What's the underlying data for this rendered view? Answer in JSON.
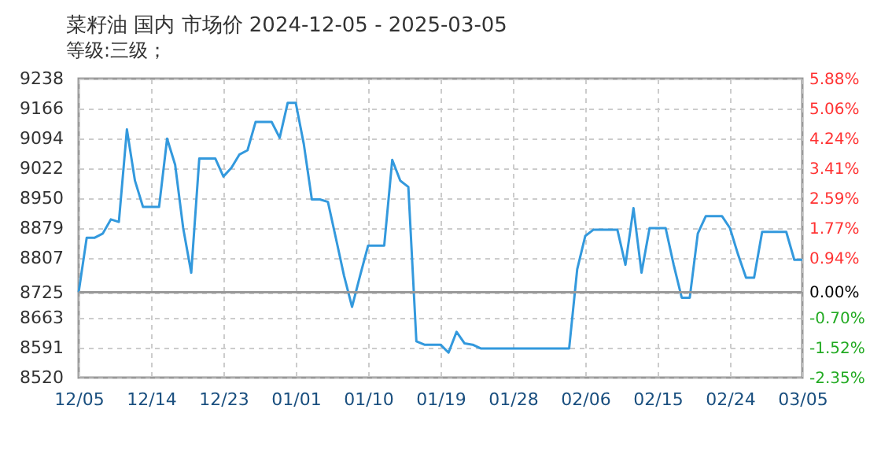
{
  "chart_data": {
    "type": "line",
    "title": "菜籽油 国内 市场价 2024-12-05 - 2025-03-05",
    "subtitle": "等级:三级；",
    "x": [
      "2024-12-05",
      "2024-12-06",
      "2024-12-07",
      "2024-12-08",
      "2024-12-09",
      "2024-12-10",
      "2024-12-11",
      "2024-12-12",
      "2024-12-13",
      "2024-12-14",
      "2024-12-15",
      "2024-12-16",
      "2024-12-17",
      "2024-12-18",
      "2024-12-19",
      "2024-12-20",
      "2024-12-21",
      "2024-12-22",
      "2024-12-23",
      "2024-12-24",
      "2024-12-25",
      "2024-12-26",
      "2024-12-27",
      "2024-12-28",
      "2024-12-29",
      "2024-12-30",
      "2024-12-31",
      "2025-01-01",
      "2025-01-02",
      "2025-01-03",
      "2025-01-04",
      "2025-01-05",
      "2025-01-06",
      "2025-01-07",
      "2025-01-08",
      "2025-01-09",
      "2025-01-10",
      "2025-01-11",
      "2025-01-12",
      "2025-01-13",
      "2025-01-14",
      "2025-01-15",
      "2025-01-16",
      "2025-01-17",
      "2025-01-18",
      "2025-01-19",
      "2025-01-20",
      "2025-01-21",
      "2025-01-22",
      "2025-01-23",
      "2025-01-24",
      "2025-01-25",
      "2025-01-26",
      "2025-01-27",
      "2025-01-28",
      "2025-01-29",
      "2025-01-30",
      "2025-01-31",
      "2025-02-01",
      "2025-02-02",
      "2025-02-03",
      "2025-02-04",
      "2025-02-05",
      "2025-02-06",
      "2025-02-07",
      "2025-02-08",
      "2025-02-09",
      "2025-02-10",
      "2025-02-11",
      "2025-02-12",
      "2025-02-13",
      "2025-02-14",
      "2025-02-15",
      "2025-02-16",
      "2025-02-17",
      "2025-02-18",
      "2025-02-19",
      "2025-02-20",
      "2025-02-21",
      "2025-02-22",
      "2025-02-23",
      "2025-02-24",
      "2025-02-25",
      "2025-02-26",
      "2025-02-27",
      "2025-02-28",
      "2025-03-01",
      "2025-03-02",
      "2025-03-03",
      "2025-03-04",
      "2025-03-05"
    ],
    "series": [
      {
        "color": "#3399dd",
        "values": [
          8725,
          8856,
          8856,
          8866,
          8900,
          8894,
          9116,
          8993,
          8930,
          8930,
          8930,
          9094,
          9031,
          8879,
          8772,
          9046,
          9046,
          9046,
          9003,
          9024,
          9056,
          9066,
          9134,
          9134,
          9134,
          9096,
          9180,
          9180,
          9081,
          8948,
          8948,
          8942,
          8854,
          8765,
          8690,
          8765,
          8837,
          8837,
          8837,
          9043,
          8993,
          8978,
          8607,
          8599,
          8599,
          8599,
          8580,
          8630,
          8602,
          8599,
          8590,
          8590,
          8590,
          8590,
          8590,
          8590,
          8590,
          8590,
          8590,
          8590,
          8590,
          8590,
          8780,
          8860,
          8875,
          8875,
          8875,
          8875,
          8791,
          8927,
          8772,
          8879,
          8879,
          8879,
          8791,
          8712,
          8712,
          8866,
          8908,
          8908,
          8908,
          8879,
          8816,
          8760,
          8760,
          8870,
          8870,
          8870,
          8870,
          8803,
          8803
        ]
      }
    ],
    "xlim": [
      "2024-12-05",
      "2025-03-05"
    ],
    "xticks": [
      {
        "value": "2024-12-05",
        "label": "12/05"
      },
      {
        "value": "2024-12-14",
        "label": "12/14"
      },
      {
        "value": "2024-12-23",
        "label": "12/23"
      },
      {
        "value": "2025-01-01",
        "label": "01/01"
      },
      {
        "value": "2025-01-10",
        "label": "01/10"
      },
      {
        "value": "2025-01-19",
        "label": "01/19"
      },
      {
        "value": "2025-01-28",
        "label": "01/28"
      },
      {
        "value": "2025-02-06",
        "label": "02/06"
      },
      {
        "value": "2025-02-15",
        "label": "02/15"
      },
      {
        "value": "2025-02-24",
        "label": "02/24"
      },
      {
        "value": "2025-03-05",
        "label": "03/05"
      }
    ],
    "ylim": [
      8520,
      9238
    ],
    "yticks": [
      8520,
      8591,
      8663,
      8725,
      8807,
      8879,
      8950,
      9022,
      9094,
      9166,
      9238
    ],
    "y2lim": [
      -2.35,
      5.88
    ],
    "y2ticks": [
      {
        "value": -2.35,
        "label": "-2.35%"
      },
      {
        "value": -1.52,
        "label": "-1.52%"
      },
      {
        "value": -0.7,
        "label": "-0.70%"
      },
      {
        "value": 0,
        "label": "0.00%"
      },
      {
        "value": 0.94,
        "label": "0.94%"
      },
      {
        "value": 1.77,
        "label": "1.77%"
      },
      {
        "value": 2.59,
        "label": "2.59%"
      },
      {
        "value": 3.41,
        "label": "3.41%"
      },
      {
        "value": 4.24,
        "label": "4.24%"
      },
      {
        "value": 5.06,
        "label": "5.06%"
      },
      {
        "value": 5.88,
        "label": "5.88%"
      }
    ],
    "ref_lines": [
      {
        "axis": "y",
        "value": 8725,
        "color": "#999999"
      }
    ],
    "grid": true,
    "marker": "none",
    "line_style": "solid"
  }
}
